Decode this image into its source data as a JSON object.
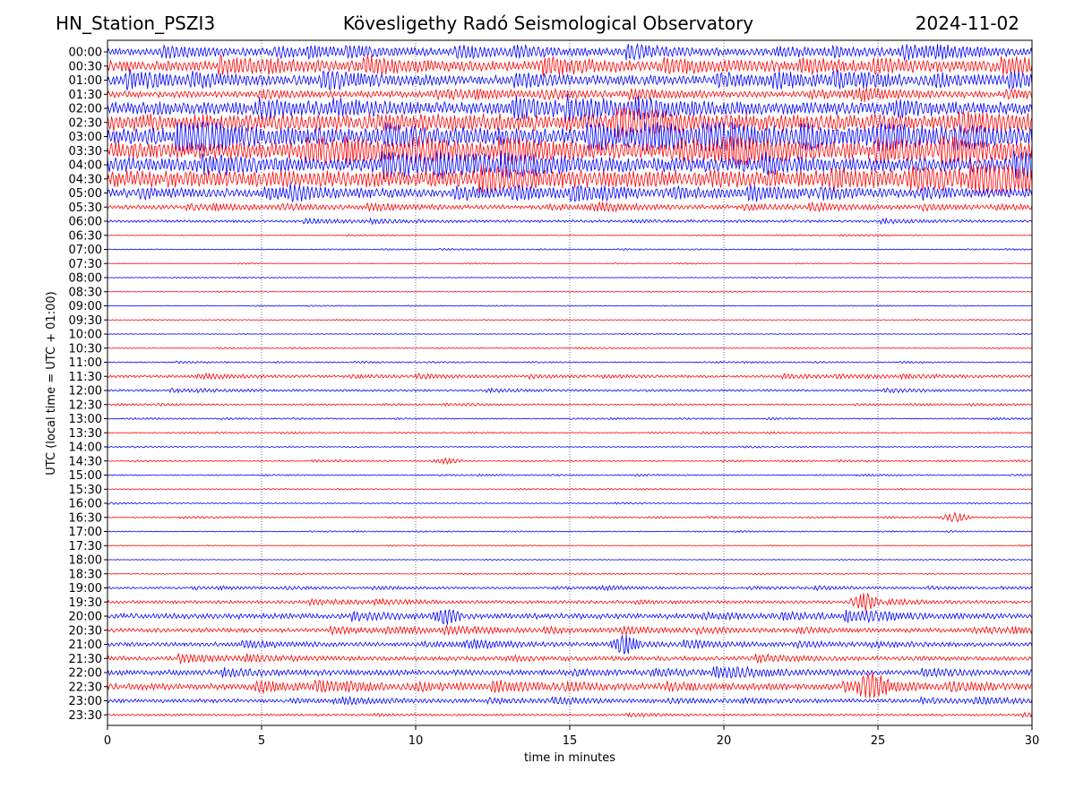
{
  "header": {
    "station": "HN_Station_PSZI3",
    "observatory": "Kövesligethy Radó Seismological Observatory",
    "date": "2024-11-02"
  },
  "chart_data": {
    "type": "line",
    "title": "Kövesligethy Radó Seismological Observatory",
    "xlabel": "time in minutes",
    "ylabel": "UTC (local time = UTC + 01:00)",
    "xlim": [
      0,
      30
    ],
    "xticks": [
      "0",
      "5",
      "10",
      "15",
      "20",
      "25",
      "30"
    ],
    "vertical_gridlines_at": [
      5,
      10,
      15,
      20,
      25
    ],
    "grid": "dotted vertical",
    "trace_colors": [
      "#0000ff",
      "#ff0000"
    ],
    "rows": [
      "00:00",
      "00:30",
      "01:00",
      "01:30",
      "02:00",
      "02:30",
      "03:00",
      "03:30",
      "04:00",
      "04:30",
      "05:00",
      "05:30",
      "06:00",
      "06:30",
      "07:00",
      "07:30",
      "08:00",
      "08:30",
      "09:00",
      "09:30",
      "10:00",
      "10:30",
      "11:00",
      "11:30",
      "12:00",
      "12:30",
      "13:00",
      "13:30",
      "14:00",
      "14:30",
      "15:00",
      "15:30",
      "16:00",
      "16:30",
      "17:00",
      "17:30",
      "18:00",
      "18:30",
      "19:00",
      "19:30",
      "20:00",
      "20:30",
      "21:00",
      "21:30",
      "22:00",
      "22:30",
      "23:00",
      "23:30"
    ],
    "relative_amplitude": [
      0.35,
      0.5,
      0.45,
      0.3,
      0.6,
      0.8,
      0.8,
      0.8,
      0.7,
      0.8,
      0.4,
      0.2,
      0.12,
      0.04,
      0.04,
      0.03,
      0.03,
      0.03,
      0.03,
      0.03,
      0.03,
      0.04,
      0.05,
      0.12,
      0.1,
      0.06,
      0.05,
      0.05,
      0.05,
      0.05,
      0.05,
      0.04,
      0.05,
      0.05,
      0.04,
      0.03,
      0.03,
      0.04,
      0.1,
      0.15,
      0.25,
      0.2,
      0.2,
      0.2,
      0.25,
      0.3,
      0.18,
      0.1
    ],
    "events": [
      {
        "row": "14:30",
        "minute": 11,
        "amp": 0.2
      },
      {
        "row": "16:30",
        "minute": 27.5,
        "amp": 0.3
      },
      {
        "row": "22:30",
        "minute": 24.8,
        "amp": 0.8
      },
      {
        "row": "21:00",
        "minute": 16.8,
        "amp": 0.5
      },
      {
        "row": "20:00",
        "minute": 11,
        "amp": 0.5
      },
      {
        "row": "19:30",
        "minute": 24.6,
        "amp": 0.6
      }
    ]
  }
}
